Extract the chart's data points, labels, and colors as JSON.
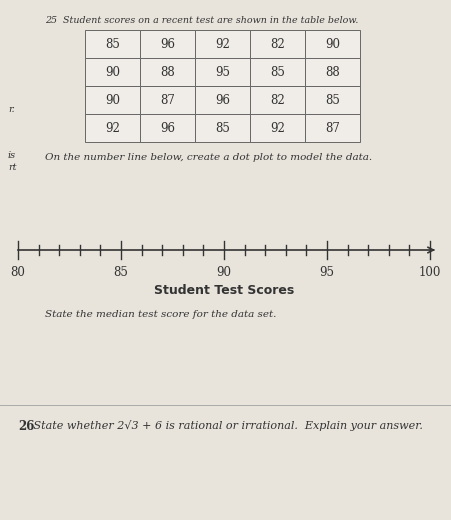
{
  "title_text": "25  Student scores on a recent test are shown in the table below.",
  "table_data": [
    [
      85,
      96,
      92,
      82,
      90
    ],
    [
      90,
      88,
      95,
      85,
      88
    ],
    [
      90,
      87,
      96,
      82,
      85
    ],
    [
      92,
      96,
      85,
      92,
      87
    ]
  ],
  "number_line_min": 80,
  "number_line_max": 100,
  "number_line_ticks": [
    80,
    85,
    90,
    95,
    100
  ],
  "number_line_label": "Student Test Scores",
  "instruction_dot": "On the number line below, create a dot plot to model the data.",
  "instruction_median": "State the median test score for the data set.",
  "question26_num": "26",
  "question26_text": " State whether 2√3 + 6 is rational or irrational.  Explain your answer.",
  "bg_color": "#d8d4cc",
  "paper_color": "#e8e4dc",
  "text_color": "#333333",
  "table_border_color": "#666666",
  "table_bg": "#f0ede8"
}
